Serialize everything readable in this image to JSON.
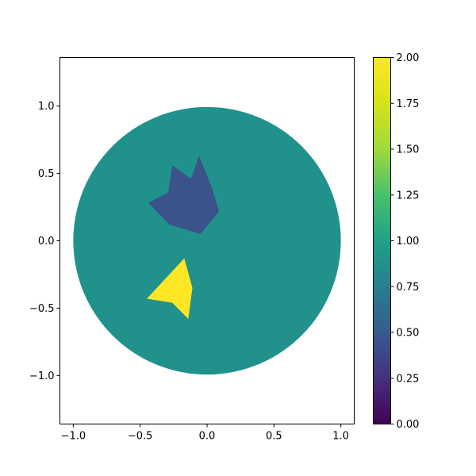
{
  "chart_data": {
    "type": "heatmap",
    "title": "",
    "xlabel": "",
    "ylabel": "",
    "xlim": [
      -1.1,
      1.1
    ],
    "ylim": [
      -1.36,
      1.36
    ],
    "x_ticks": [
      -1.0,
      -0.5,
      0.0,
      0.5,
      1.0
    ],
    "x_tick_labels": [
      "−1.0",
      "−0.5",
      "0.0",
      "0.5",
      "1.0"
    ],
    "y_ticks": [
      -1.0,
      -0.5,
      0.0,
      0.5,
      1.0
    ],
    "y_tick_labels": [
      "−1.0",
      "−0.5",
      "0.0",
      "0.5",
      "1.0"
    ],
    "grid": false,
    "colormap": "viridis",
    "colorbar": {
      "min": 0.0,
      "max": 2.0,
      "ticks": [
        0.0,
        0.25,
        0.5,
        0.75,
        1.0,
        1.25,
        1.5,
        1.75,
        2.0
      ],
      "tick_labels": [
        "0.00",
        "0.25",
        "0.50",
        "0.75",
        "1.00",
        "1.25",
        "1.50",
        "1.75",
        "2.00"
      ]
    },
    "regions": [
      {
        "shape": "disk",
        "value": 1.0,
        "center": [
          0.0,
          0.0
        ],
        "radius": 1.0,
        "color": "#21918c"
      },
      {
        "shape": "polygon",
        "value": 0.5,
        "color": "#3b528b",
        "points": [
          [
            -0.44,
            0.28
          ],
          [
            -0.29,
            0.36
          ],
          [
            -0.26,
            0.56
          ],
          [
            -0.12,
            0.46
          ],
          [
            -0.06,
            0.63
          ],
          [
            0.03,
            0.41
          ],
          [
            0.09,
            0.22
          ],
          [
            -0.05,
            0.05
          ],
          [
            -0.28,
            0.12
          ]
        ]
      },
      {
        "shape": "polygon",
        "value": 2.0,
        "color": "#fde725",
        "points": [
          [
            -0.45,
            -0.43
          ],
          [
            -0.17,
            -0.13
          ],
          [
            -0.11,
            -0.35
          ],
          [
            -0.14,
            -0.58
          ],
          [
            -0.26,
            -0.46
          ]
        ]
      }
    ]
  }
}
